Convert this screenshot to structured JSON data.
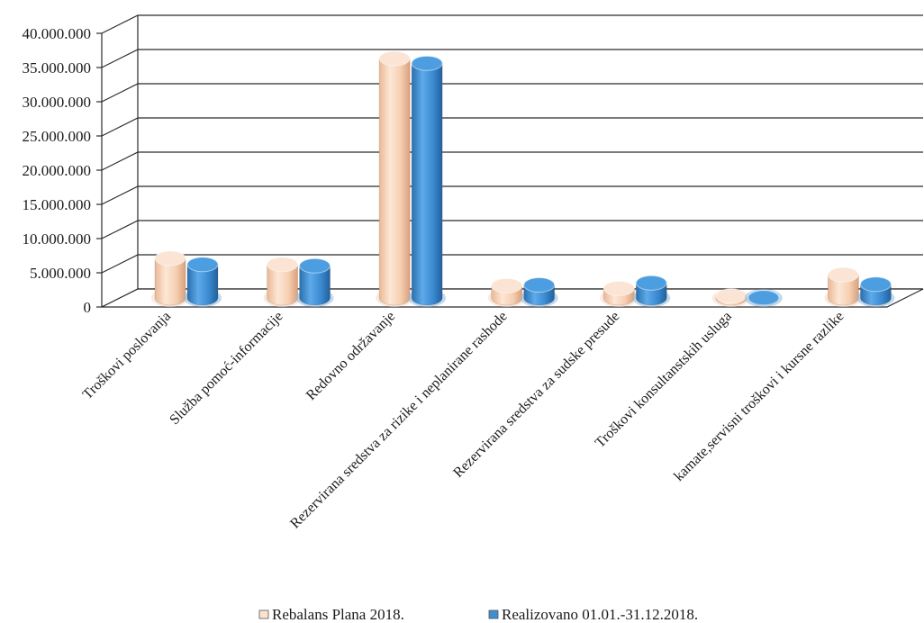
{
  "chart_data": {
    "type": "bar",
    "style": "3d-cylinder",
    "categories": [
      "Troškovi poslovanja",
      "Služba pomoć-informacije",
      "Redovno održavanje",
      "Rezervirana sredstva za rizike i neplanirane rashode",
      "Rezervirana sredstva za sudske presude",
      "Troškovi konsultanstskih usluga",
      "kamate,servisni troškovi i kursne razlike"
    ],
    "series": [
      {
        "name": "Rebalans Plana 2018.",
        "color": "#f9d6bd",
        "values": [
          5800000,
          4900000,
          35000000,
          1800000,
          1400000,
          300000,
          3400000
        ]
      },
      {
        "name": "Realizovano 01.01.-31.12.2018.",
        "color": "#3f8fd2",
        "values": [
          4900000,
          4700000,
          34300000,
          1900000,
          2200000,
          50000,
          2000000
        ]
      }
    ],
    "ylim": [
      0,
      40000000
    ],
    "yticks": [
      "0",
      "5.000.000",
      "10.000.000",
      "15.000.000",
      "20.000.000",
      "25.000.000",
      "30.000.000",
      "35.000.000",
      "40.000.000"
    ],
    "grid": true,
    "legend": "bottom"
  }
}
